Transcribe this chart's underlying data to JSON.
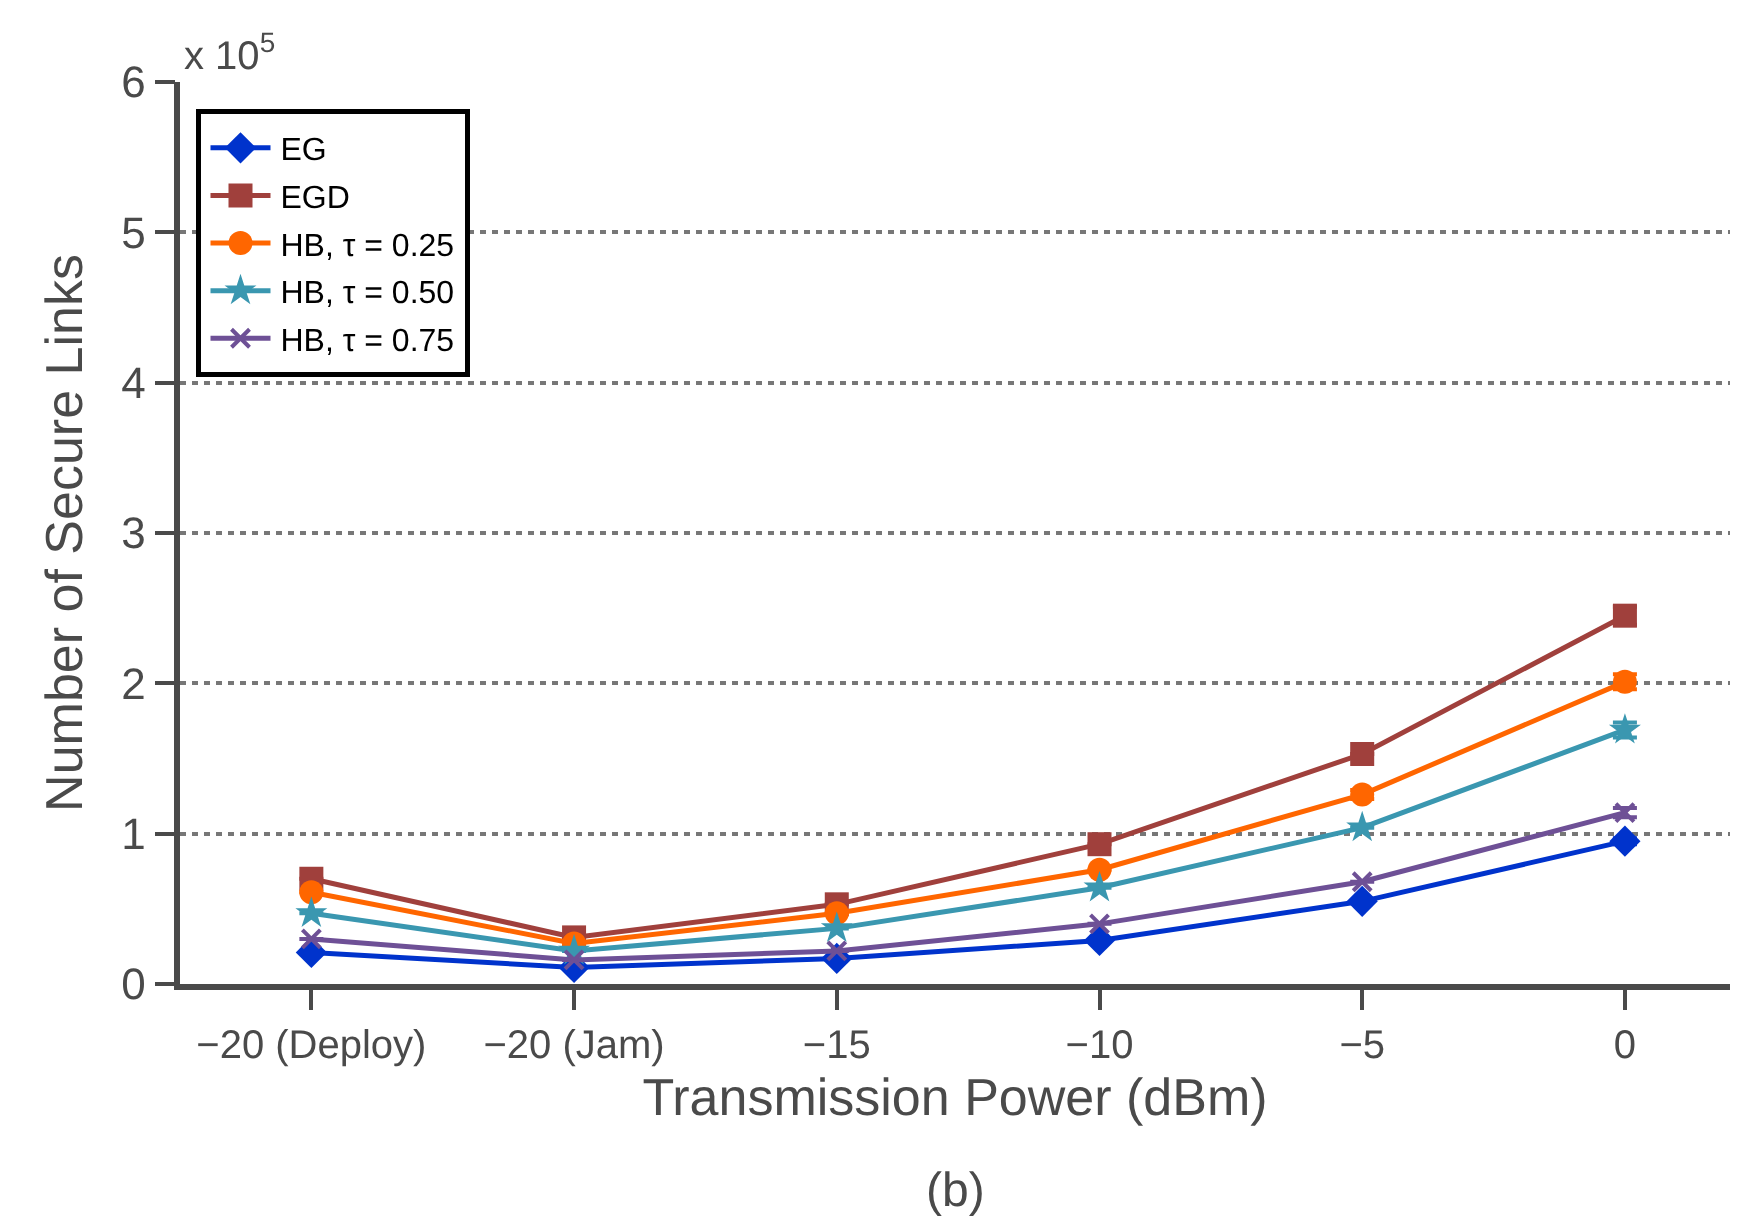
{
  "chart_data": {
    "type": "line",
    "xlabel": "Transmission Power (dBm)",
    "ylabel": "Number of Secure Links",
    "categories": [
      "−20 (Deploy)",
      "−20 (Jam)",
      "−15",
      "−10",
      "−5",
      "0"
    ],
    "series": [
      {
        "name": "EG",
        "color": "#0033cc",
        "marker": "diamond",
        "values": [
          0.21,
          0.11,
          0.17,
          0.29,
          0.55,
          0.95
        ],
        "errors": [
          null,
          null,
          null,
          null,
          null,
          0.02
        ]
      },
      {
        "name": "EGD",
        "color": "#a0403c",
        "marker": "square",
        "values": [
          0.7,
          0.31,
          0.53,
          0.93,
          1.53,
          2.45
        ],
        "errors": [
          null,
          null,
          null,
          null,
          null,
          0.06
        ]
      },
      {
        "name": "HB, τ = 0.25",
        "color": "#ff6600",
        "marker": "circle",
        "values": [
          0.61,
          0.27,
          0.47,
          0.76,
          1.26,
          2.01
        ],
        "errors": [
          null,
          null,
          null,
          null,
          0.03,
          0.05
        ]
      },
      {
        "name": "HB, τ = 0.50",
        "color": "#3a97b0",
        "marker": "star",
        "values": [
          0.47,
          0.22,
          0.37,
          0.64,
          1.04,
          1.69
        ],
        "errors": [
          null,
          null,
          null,
          null,
          null,
          0.05
        ]
      },
      {
        "name": "HB, τ = 0.75",
        "color": "#6e5096",
        "marker": "cross",
        "values": [
          0.3,
          0.16,
          0.22,
          0.4,
          0.68,
          1.14
        ],
        "errors": [
          null,
          null,
          null,
          null,
          null,
          0.03
        ]
      }
    ],
    "ylim": [
      0,
      6
    ],
    "yticks": [
      0,
      1,
      2,
      3,
      4,
      5,
      6
    ],
    "grid": "y",
    "legend": "top left",
    "annotations": [
      "x 10$^{5}$",
      "(b)"
    ]
  }
}
